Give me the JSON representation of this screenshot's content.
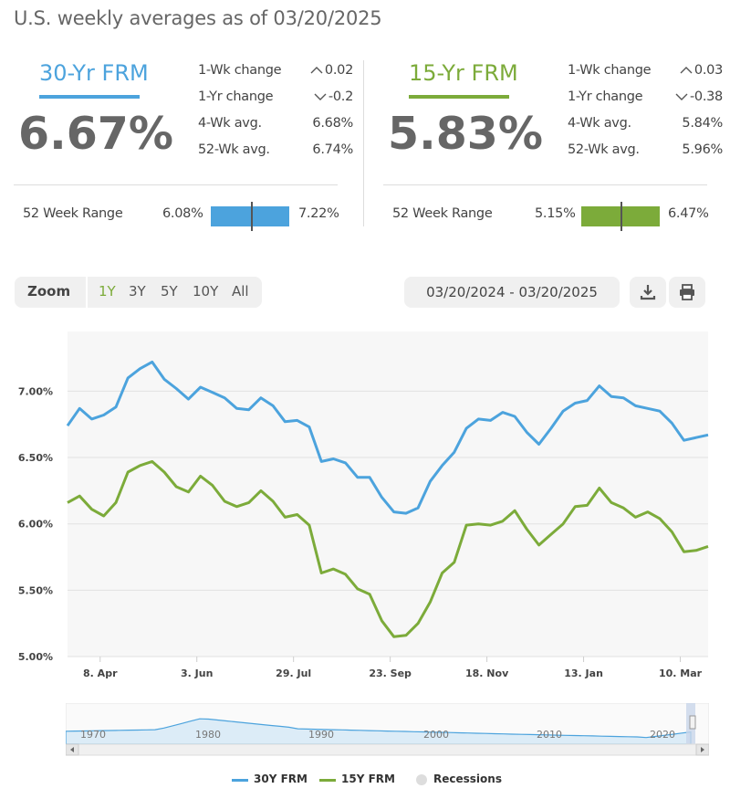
{
  "header": {
    "title": "U.S. weekly averages as of 03/20/2025"
  },
  "colors": {
    "frm30": "#4ca3dd",
    "frm15": "#7cab3a",
    "recession": "#dddddd"
  },
  "rate30": {
    "name": "30-Yr FRM",
    "rate": "6.67%",
    "stats": [
      {
        "label": "1-Wk change",
        "value": "0.02",
        "direction": "up"
      },
      {
        "label": "1-Yr change",
        "value": "-0.2",
        "direction": "down"
      },
      {
        "label": "4-Wk avg.",
        "value": "6.68%"
      },
      {
        "label": "52-Wk avg.",
        "value": "6.74%"
      }
    ],
    "range_label": "52 Week Range",
    "range_min": "6.08%",
    "range_max": "7.22%",
    "range_current": 6.67
  },
  "rate15": {
    "name": "15-Yr FRM",
    "rate": "5.83%",
    "stats": [
      {
        "label": "1-Wk change",
        "value": "0.03",
        "direction": "up"
      },
      {
        "label": "1-Yr change",
        "value": "-0.38",
        "direction": "down"
      },
      {
        "label": "4-Wk avg.",
        "value": "5.84%"
      },
      {
        "label": "52-Wk avg.",
        "value": "5.96%"
      }
    ],
    "range_label": "52 Week Range",
    "range_min": "5.15%",
    "range_max": "6.47%",
    "range_current": 5.83
  },
  "zoom": {
    "label": "Zoom",
    "options": [
      "1Y",
      "3Y",
      "5Y",
      "10Y",
      "All"
    ],
    "selected": "1Y"
  },
  "date_range": "03/20/2024 - 03/20/2025",
  "icons": {
    "download": "download-icon",
    "print": "print-icon"
  },
  "chart_data": {
    "type": "line",
    "ylim": [
      5.0,
      7.45
    ],
    "yticks": [
      "5.00%",
      "5.50%",
      "6.00%",
      "6.50%",
      "7.00%"
    ],
    "ytick_values": [
      5.0,
      5.5,
      6.0,
      6.5,
      7.0
    ],
    "xticks": [
      "8. Apr",
      "3. Jun",
      "29. Jul",
      "23. Sep",
      "18. Nov",
      "13. Jan",
      "10. Mar"
    ],
    "xtick_indices": [
      2.7,
      10.7,
      18.7,
      26.7,
      34.7,
      42.7,
      50.7
    ],
    "grid": true,
    "legend_position": "bottom",
    "series": [
      {
        "name": "30Y FRM",
        "values": [
          6.74,
          6.87,
          6.79,
          6.82,
          6.88,
          7.1,
          7.17,
          7.22,
          7.09,
          7.02,
          6.94,
          7.03,
          6.99,
          6.95,
          6.87,
          6.86,
          6.95,
          6.89,
          6.77,
          6.78,
          6.73,
          6.47,
          6.49,
          6.46,
          6.35,
          6.35,
          6.2,
          6.09,
          6.08,
          6.12,
          6.32,
          6.44,
          6.54,
          6.72,
          6.79,
          6.78,
          6.84,
          6.81,
          6.69,
          6.6,
          6.72,
          6.85,
          6.91,
          6.93,
          7.04,
          6.96,
          6.95,
          6.89,
          6.87,
          6.85,
          6.76,
          6.63,
          6.65,
          6.67
        ]
      },
      {
        "name": "15Y FRM",
        "values": [
          6.16,
          6.21,
          6.11,
          6.06,
          6.16,
          6.39,
          6.44,
          6.47,
          6.39,
          6.28,
          6.24,
          6.36,
          6.29,
          6.17,
          6.13,
          6.16,
          6.25,
          6.17,
          6.05,
          6.07,
          5.99,
          5.63,
          5.66,
          5.62,
          5.51,
          5.47,
          5.27,
          5.15,
          5.16,
          5.25,
          5.41,
          5.63,
          5.71,
          5.99,
          6.0,
          5.99,
          6.02,
          6.1,
          5.96,
          5.84,
          5.92,
          6.0,
          6.13,
          6.14,
          6.27,
          6.16,
          6.12,
          6.05,
          6.09,
          6.04,
          5.94,
          5.79,
          5.8,
          5.83
        ]
      }
    ],
    "navigator": {
      "xticks": [
        "1970",
        "1980",
        "1990",
        "2000",
        "2010",
        "2020"
      ]
    },
    "legend": [
      "30Y FRM",
      "15Y FRM",
      "Recessions"
    ]
  }
}
